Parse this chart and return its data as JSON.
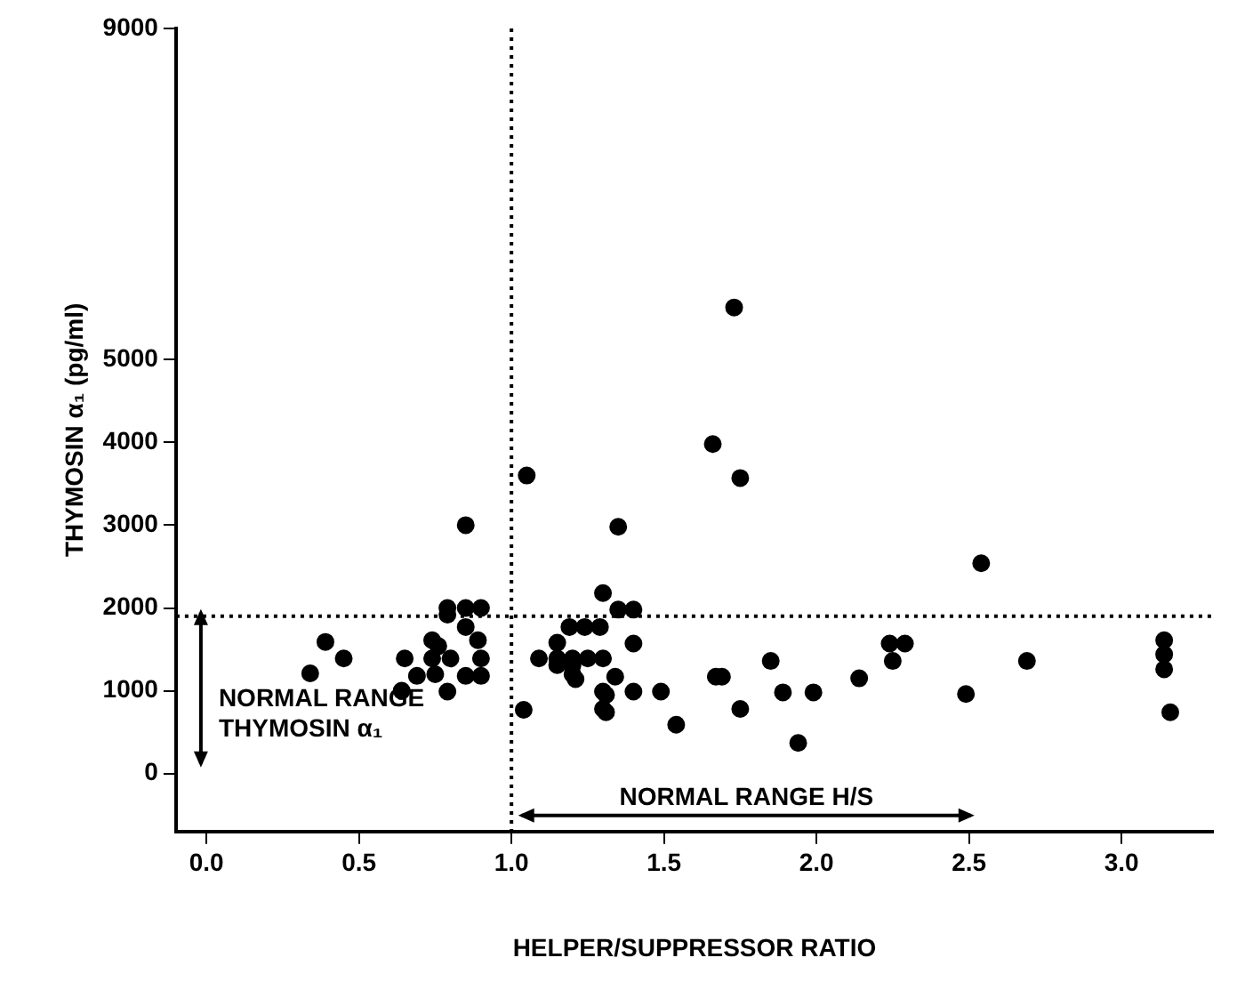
{
  "chart_data": {
    "type": "scatter",
    "xlabel": "HELPER/SUPPRESSOR RATIO",
    "ylabel": "THYMOSIN α₁ (pg/ml)",
    "xlim": [
      -0.1,
      3.3
    ],
    "xticks": [
      {
        "value": 0,
        "label": "0.0"
      },
      0.5,
      {
        "value": 1,
        "label": "1.0"
      },
      1.5,
      {
        "value": 2,
        "label": "2.0"
      },
      2.5,
      {
        "value": 3,
        "label": "3.0"
      }
    ],
    "ylim": [
      -700,
      9000
    ],
    "yticks": [
      0,
      1000,
      2000,
      3000,
      4000,
      5000,
      9000
    ],
    "grid": false,
    "legend": false,
    "marker": "circle",
    "series": [
      {
        "color": "#000000",
        "x": [
          0.79,
          0.85,
          0.9,
          0.79,
          0.85,
          0.39,
          0.74,
          0.76,
          0.89,
          0.45,
          0.65,
          0.74,
          0.8,
          0.9,
          0.34,
          0.69,
          0.75,
          0.85,
          0.9,
          0.64,
          0.79,
          1.3,
          1.35,
          1.4,
          1.19,
          1.24,
          1.29,
          1.15,
          1.4,
          1.09,
          1.15,
          1.2,
          1.25,
          1.3,
          1.15,
          1.2,
          1.2,
          1.21,
          1.34,
          1.3,
          1.31,
          1.4,
          1.49,
          1.04,
          1.3,
          1.31,
          1.54,
          1.67,
          2.54,
          2.24,
          2.29,
          1.85,
          2.25,
          2.69,
          1.69,
          2.14,
          1.89,
          1.99,
          2.49,
          1.75,
          1.94,
          3.14,
          3.14,
          3.14,
          3.16,
          1.73,
          1.66,
          1.05,
          1.75,
          0.85,
          1.35
        ],
        "values": [
          2000,
          2000,
          2000,
          1920,
          1770,
          1590,
          1610,
          1540,
          1610,
          1390,
          1390,
          1390,
          1390,
          1390,
          1210,
          1180,
          1200,
          1180,
          1180,
          1000,
          990,
          2180,
          1980,
          1980,
          1770,
          1770,
          1770,
          1580,
          1570,
          1390,
          1390,
          1390,
          1390,
          1390,
          1310,
          1310,
          1200,
          1140,
          1170,
          990,
          950,
          990,
          990,
          770,
          780,
          740,
          590,
          1170,
          2540,
          1570,
          1570,
          1360,
          1360,
          1360,
          1170,
          1150,
          980,
          980,
          960,
          780,
          370,
          1610,
          1440,
          1260,
          740,
          5630,
          3980,
          3600,
          3570,
          3000,
          2980
        ]
      }
    ],
    "ref_lines": [
      {
        "axis": "x",
        "value": 1.0,
        "line_style": "dotted",
        "color": "#000000"
      },
      {
        "axis": "y",
        "value": 1900,
        "line_style": "dotted",
        "color": "#000000"
      }
    ],
    "annotations": [
      "NORMAL RANGE THYMOSIN α₁",
      "NORMAL RANGE H/S"
    ]
  }
}
